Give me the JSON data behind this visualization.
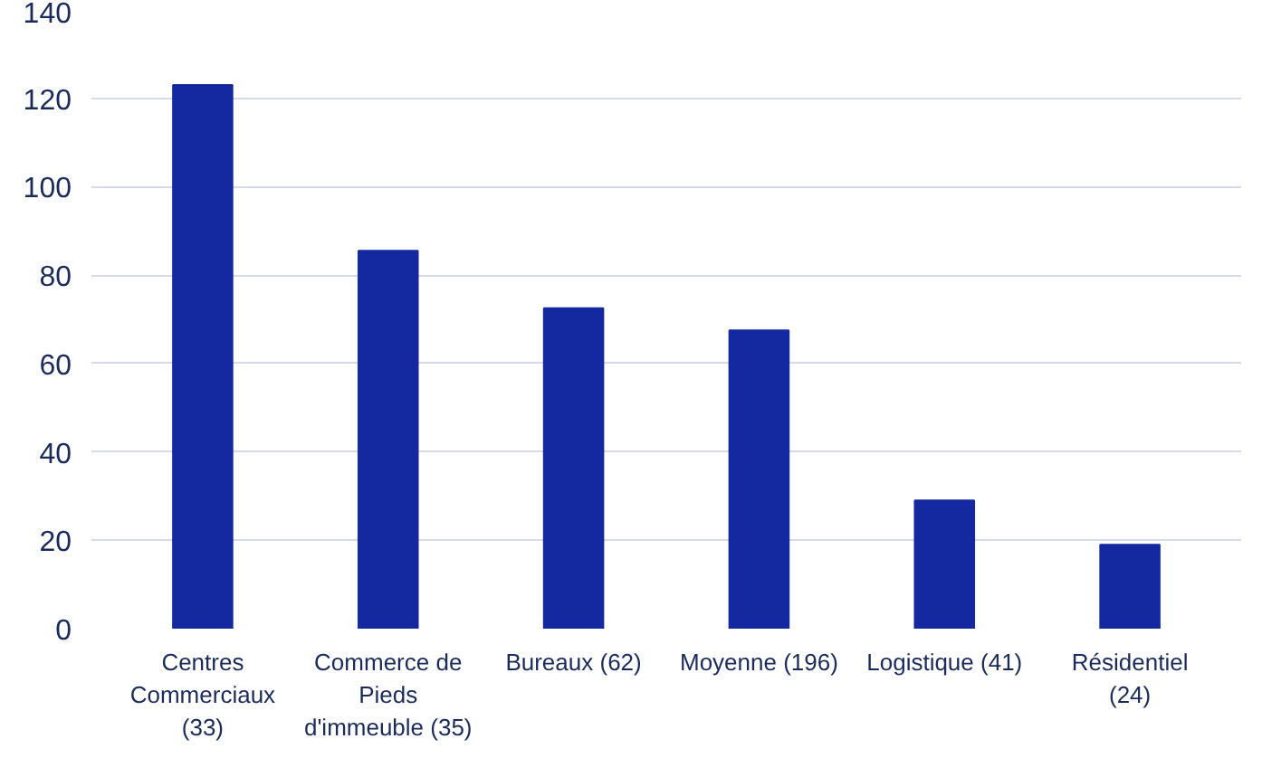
{
  "chart_data": {
    "type": "bar",
    "categories": [
      "Centres Commerciaux (33)",
      "Commerce de Pieds d'immeuble (35)",
      "Bureaux (62)",
      "Moyenne (196)",
      "Logistique (41)",
      "Résidentiel (24)"
    ],
    "values": [
      123,
      85.5,
      72.5,
      67.5,
      29,
      19
    ],
    "color": "#1428a0",
    "ylim": [
      0,
      140
    ],
    "yticks": [
      0,
      20,
      40,
      60,
      80,
      100,
      120,
      140
    ],
    "grid": "y"
  }
}
